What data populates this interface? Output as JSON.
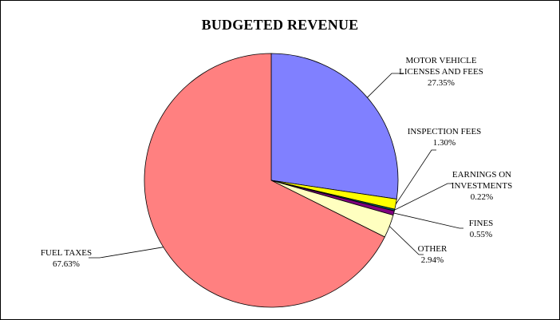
{
  "chart_data": {
    "type": "pie",
    "title": "BUDGETED REVENUE",
    "slices": [
      {
        "label_lines": [
          "MOTOR VEHICLE",
          "LICENSES AND FEES"
        ],
        "pct": "27.35%",
        "value": 27.35,
        "color": "#8080FF"
      },
      {
        "label_lines": [
          "INSPECTION FEES"
        ],
        "pct": "1.30%",
        "value": 1.3,
        "color": "#FFFF00"
      },
      {
        "label_lines": [
          "EARNINGS ON",
          "INVESTMENTS"
        ],
        "pct": "0.22%",
        "value": 0.22,
        "color": "#006060"
      },
      {
        "label_lines": [
          "FINES"
        ],
        "pct": "0.55%",
        "value": 0.55,
        "color": "#800080"
      },
      {
        "label_lines": [
          "OTHER"
        ],
        "pct": "2.94%",
        "value": 2.94,
        "color": "#FFFFC0"
      },
      {
        "label_lines": [
          "FUEL TAXES"
        ],
        "pct": "67.63%",
        "value": 67.63,
        "color": "#FF8080"
      }
    ]
  }
}
